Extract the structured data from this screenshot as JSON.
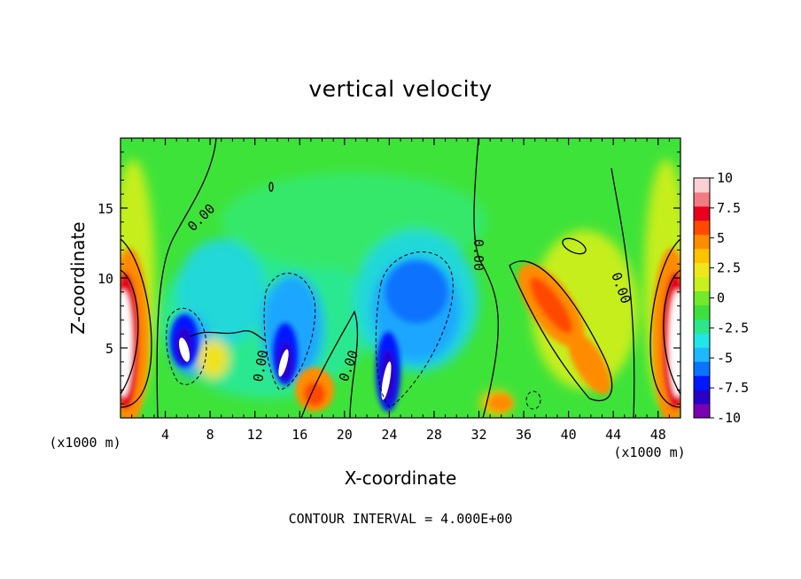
{
  "chart_data": {
    "type": "heatmap",
    "title": "vertical velocity",
    "xlabel": "X-coordinate",
    "ylabel": "Z-coordinate",
    "x_unit_label": "(x1000 m)",
    "x_ticks": [
      "4",
      "8",
      "12",
      "16",
      "20",
      "24",
      "28",
      "32",
      "36",
      "40",
      "44",
      "48"
    ],
    "y_ticks": [
      "5",
      "10",
      "15"
    ],
    "xlim": [
      0,
      50
    ],
    "ylim": [
      0,
      20
    ],
    "colorbar": {
      "ticks": [
        "10",
        "7.5",
        "5",
        "2.5",
        "0",
        "-2.5",
        "-5",
        "-7.5",
        "-10"
      ],
      "range": [
        -10,
        10
      ],
      "colors": [
        "#7a00b4",
        "#2a00c8",
        "#0018ff",
        "#0a73ff",
        "#1fb8ff",
        "#22e6e6",
        "#2ce68a",
        "#3de03d",
        "#74e82a",
        "#c8f01e",
        "#f0e61e",
        "#ffc300",
        "#ff8c00",
        "#ff4a00",
        "#e8001e",
        "#f27a82",
        "#fbd0d4"
      ]
    },
    "contour_labels": [
      "0.00",
      "0.00",
      "0.00",
      "0.00",
      "0.00"
    ],
    "contour_interval_text": "CONTOUR INTERVAL = 4.000E+00",
    "features": [
      {
        "x": 0.8,
        "z": 7.0,
        "w": 10,
        "kind": "updraft"
      },
      {
        "x": 49.2,
        "z": 7.0,
        "w": 10,
        "kind": "updraft"
      },
      {
        "x": 5.8,
        "z": 5.5,
        "w": -10,
        "kind": "downdraft"
      },
      {
        "x": 14.2,
        "z": 4.5,
        "w": -10,
        "kind": "downdraft"
      },
      {
        "x": 23.8,
        "z": 3.0,
        "w": -10,
        "kind": "downdraft"
      },
      {
        "x": 27.0,
        "z": 7.5,
        "w": -6,
        "kind": "downdraft"
      },
      {
        "x": 13.5,
        "z": 7.5,
        "w": -5,
        "kind": "downdraft"
      },
      {
        "x": 18.5,
        "z": 2.0,
        "w": 7,
        "kind": "updraft"
      },
      {
        "x": 38.5,
        "z": 8.5,
        "w": 7,
        "kind": "updraft"
      },
      {
        "x": 41.5,
        "z": 4.0,
        "w": 6,
        "kind": "updraft"
      },
      {
        "x": 34.0,
        "z": 1.2,
        "w": 6,
        "kind": "updraft"
      }
    ]
  }
}
